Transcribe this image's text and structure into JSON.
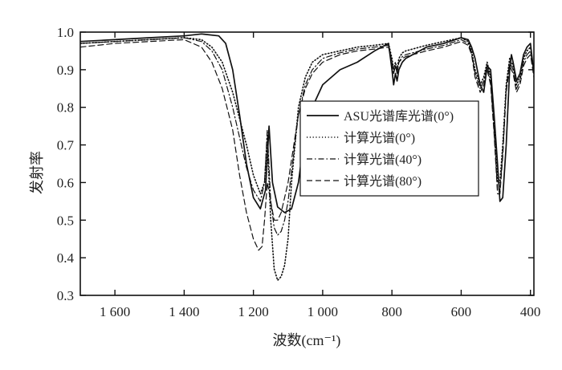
{
  "chart_data": {
    "type": "line",
    "xlabel": "波数(cm⁻¹)",
    "ylabel": "发射率",
    "xlim": [
      1700,
      390
    ],
    "ylim": [
      0.3,
      1.0
    ],
    "x_reversed": true,
    "x_ticks": [
      1600,
      1400,
      1200,
      1000,
      800,
      600,
      400
    ],
    "x_tick_labels": [
      "1 600",
      "1 400",
      "1 200",
      "1 000",
      "800",
      "600",
      "400"
    ],
    "y_ticks": [
      0.3,
      0.4,
      0.5,
      0.6,
      0.7,
      0.8,
      0.9,
      1.0
    ],
    "y_tick_labels": [
      "0.3",
      "0.4",
      "0.5",
      "0.6",
      "0.7",
      "0.8",
      "0.9",
      "1.0"
    ],
    "legend_position": "center-right",
    "series": [
      {
        "name": "ASU光谱库光谱(0°)",
        "style": "solid",
        "x": [
          1700,
          1600,
          1500,
          1400,
          1350,
          1300,
          1280,
          1260,
          1240,
          1220,
          1200,
          1180,
          1165,
          1155,
          1145,
          1130,
          1110,
          1090,
          1070,
          1050,
          1030,
          1000,
          950,
          900,
          850,
          810,
          800,
          795,
          790,
          785,
          780,
          770,
          760,
          740,
          720,
          700,
          650,
          600,
          580,
          570,
          560,
          545,
          535,
          525,
          515,
          505,
          495,
          488,
          480,
          470,
          460,
          455,
          450,
          440,
          430,
          420,
          410,
          400,
          390
        ],
        "values": [
          0.975,
          0.98,
          0.985,
          0.99,
          0.995,
          0.99,
          0.97,
          0.9,
          0.78,
          0.65,
          0.56,
          0.53,
          0.58,
          0.75,
          0.6,
          0.535,
          0.52,
          0.53,
          0.6,
          0.74,
          0.8,
          0.86,
          0.9,
          0.92,
          0.95,
          0.97,
          0.9,
          0.86,
          0.89,
          0.87,
          0.9,
          0.92,
          0.93,
          0.94,
          0.95,
          0.96,
          0.97,
          0.985,
          0.98,
          0.96,
          0.93,
          0.86,
          0.84,
          0.91,
          0.9,
          0.78,
          0.65,
          0.55,
          0.56,
          0.7,
          0.9,
          0.94,
          0.92,
          0.87,
          0.89,
          0.94,
          0.96,
          0.97,
          0.89
        ]
      },
      {
        "name": "计算光谱(0°)",
        "style": "dotted",
        "x": [
          1700,
          1600,
          1500,
          1400,
          1350,
          1320,
          1290,
          1260,
          1240,
          1220,
          1200,
          1180,
          1168,
          1160,
          1150,
          1140,
          1130,
          1120,
          1110,
          1100,
          1090,
          1070,
          1050,
          1030,
          1000,
          950,
          900,
          850,
          810,
          800,
          795,
          790,
          785,
          780,
          770,
          760,
          740,
          720,
          700,
          650,
          600,
          580,
          570,
          560,
          545,
          535,
          525,
          515,
          505,
          495,
          488,
          480,
          470,
          460,
          450,
          440,
          430,
          420,
          410,
          400,
          390
        ],
        "values": [
          0.97,
          0.975,
          0.98,
          0.985,
          0.98,
          0.96,
          0.92,
          0.84,
          0.77,
          0.7,
          0.62,
          0.57,
          0.6,
          0.72,
          0.5,
          0.37,
          0.34,
          0.35,
          0.38,
          0.45,
          0.6,
          0.8,
          0.88,
          0.92,
          0.94,
          0.95,
          0.96,
          0.965,
          0.97,
          0.93,
          0.9,
          0.92,
          0.9,
          0.93,
          0.945,
          0.95,
          0.955,
          0.96,
          0.965,
          0.975,
          0.985,
          0.975,
          0.95,
          0.9,
          0.86,
          0.88,
          0.92,
          0.88,
          0.75,
          0.6,
          0.6,
          0.7,
          0.86,
          0.93,
          0.91,
          0.86,
          0.88,
          0.93,
          0.95,
          0.96,
          0.9
        ]
      },
      {
        "name": "计算光谱(40°)",
        "style": "dashdot",
        "x": [
          1700,
          1600,
          1500,
          1400,
          1350,
          1320,
          1290,
          1260,
          1240,
          1220,
          1200,
          1180,
          1168,
          1160,
          1150,
          1140,
          1130,
          1120,
          1110,
          1100,
          1090,
          1070,
          1050,
          1030,
          1000,
          950,
          900,
          850,
          810,
          800,
          795,
          790,
          785,
          780,
          770,
          760,
          740,
          720,
          700,
          650,
          600,
          580,
          570,
          560,
          545,
          535,
          525,
          515,
          505,
          495,
          488,
          480,
          470,
          460,
          450,
          440,
          430,
          420,
          410,
          400,
          390
        ],
        "values": [
          0.97,
          0.975,
          0.98,
          0.985,
          0.975,
          0.95,
          0.9,
          0.8,
          0.72,
          0.64,
          0.58,
          0.55,
          0.6,
          0.74,
          0.55,
          0.48,
          0.46,
          0.47,
          0.5,
          0.55,
          0.63,
          0.78,
          0.86,
          0.9,
          0.93,
          0.945,
          0.955,
          0.96,
          0.965,
          0.92,
          0.89,
          0.91,
          0.89,
          0.92,
          0.935,
          0.94,
          0.945,
          0.95,
          0.955,
          0.965,
          0.98,
          0.97,
          0.945,
          0.89,
          0.85,
          0.87,
          0.91,
          0.87,
          0.74,
          0.58,
          0.58,
          0.68,
          0.85,
          0.92,
          0.9,
          0.85,
          0.87,
          0.92,
          0.94,
          0.95,
          0.89
        ]
      },
      {
        "name": "计算光谱(80°)",
        "style": "dashed",
        "x": [
          1700,
          1600,
          1500,
          1400,
          1350,
          1320,
          1290,
          1260,
          1240,
          1220,
          1200,
          1185,
          1175,
          1168,
          1160,
          1150,
          1140,
          1130,
          1120,
          1110,
          1100,
          1090,
          1070,
          1050,
          1030,
          1000,
          950,
          900,
          850,
          810,
          800,
          795,
          790,
          785,
          780,
          770,
          760,
          740,
          720,
          700,
          650,
          600,
          580,
          570,
          560,
          545,
          535,
          525,
          515,
          505,
          495,
          488,
          480,
          470,
          460,
          450,
          440,
          430,
          420,
          410,
          400,
          390
        ],
        "values": [
          0.96,
          0.97,
          0.975,
          0.98,
          0.96,
          0.92,
          0.85,
          0.74,
          0.62,
          0.52,
          0.45,
          0.42,
          0.43,
          0.5,
          0.6,
          0.55,
          0.5,
          0.5,
          0.52,
          0.56,
          0.6,
          0.66,
          0.78,
          0.85,
          0.89,
          0.92,
          0.94,
          0.95,
          0.955,
          0.96,
          0.92,
          0.89,
          0.91,
          0.89,
          0.92,
          0.93,
          0.935,
          0.94,
          0.945,
          0.95,
          0.96,
          0.975,
          0.965,
          0.94,
          0.88,
          0.84,
          0.86,
          0.9,
          0.86,
          0.73,
          0.57,
          0.57,
          0.67,
          0.84,
          0.91,
          0.89,
          0.84,
          0.86,
          0.91,
          0.93,
          0.94,
          0.88
        ]
      }
    ]
  }
}
